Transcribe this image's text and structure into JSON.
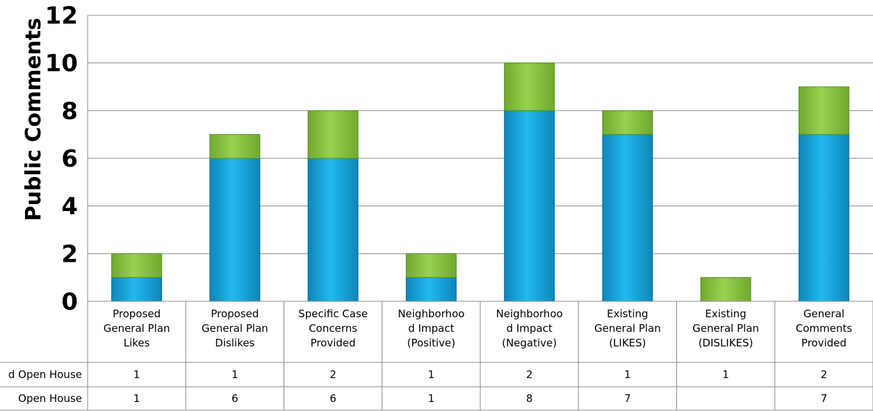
{
  "chart_data": {
    "type": "bar",
    "stacked": true,
    "title": "",
    "xlabel": "",
    "ylabel": "Public Comments",
    "ylim": [
      0,
      12
    ],
    "yticks": [
      "0",
      "2",
      "4",
      "6",
      "8",
      "10",
      "12"
    ],
    "grid": true,
    "categories": [
      [
        "Proposed",
        "General Plan",
        "Likes"
      ],
      [
        "Proposed",
        "General Plan",
        "Dislikes"
      ],
      [
        "Specific Case",
        "Concerns",
        "Provided"
      ],
      [
        "Neighborhoo",
        "d Impact",
        "(Positive)"
      ],
      [
        "Neighborhoo",
        "d Impact",
        "(Negative)"
      ],
      [
        "Existing",
        "General Plan",
        "(LIKES)"
      ],
      [
        "Existing",
        "General Plan",
        "(DISLIKES)"
      ],
      [
        "General",
        "Comments",
        "Provided"
      ]
    ],
    "series": [
      {
        "name": "Open House",
        "color": "#1aa8e0",
        "values": [
          1,
          6,
          6,
          1,
          8,
          7,
          null,
          7
        ],
        "labels": [
          "1",
          "6",
          "6",
          "1",
          "8",
          "7",
          "",
          "7"
        ]
      },
      {
        "name": "d Open House",
        "color": "#8cc63f",
        "values": [
          1,
          1,
          2,
          1,
          2,
          1,
          1,
          2
        ],
        "labels": [
          "1",
          "1",
          "2",
          "1",
          "2",
          "1",
          "1",
          "2"
        ]
      }
    ]
  }
}
